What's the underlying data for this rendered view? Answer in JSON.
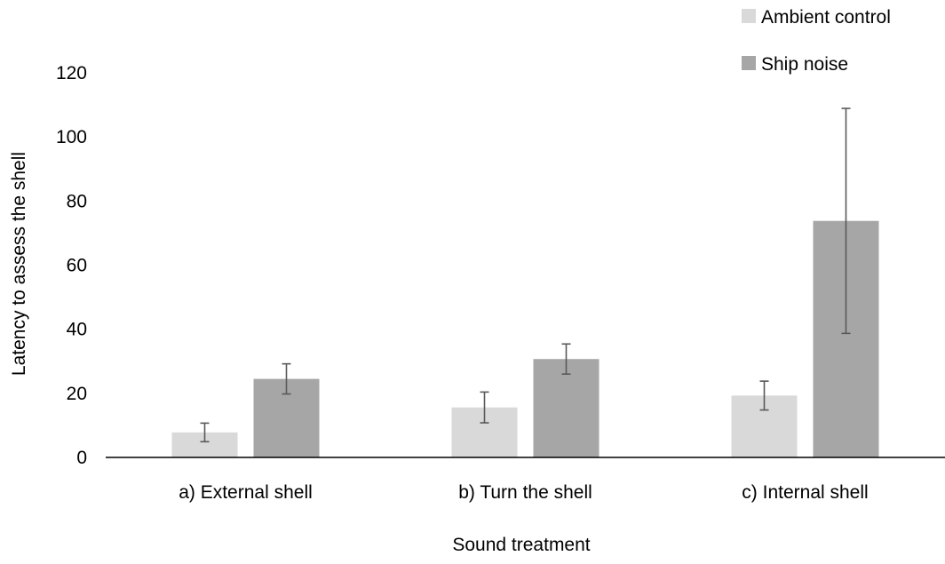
{
  "chart_data": {
    "type": "bar",
    "title": "",
    "xlabel": "Sound treatment",
    "ylabel": "Latency to assess the shell",
    "categories": [
      "a) External shell",
      "b) Turn the shell",
      "c) Internal shell"
    ],
    "series": [
      {
        "name": "Ambient control",
        "color": "#d9d9d9",
        "values": [
          7.8,
          15.6,
          19.3
        ],
        "error": [
          2.9,
          4.8,
          4.5
        ]
      },
      {
        "name": "Ship noise",
        "color": "#a6a6a6",
        "values": [
          24.5,
          30.7,
          73.8
        ],
        "error": [
          4.7,
          4.7,
          35.1
        ]
      }
    ],
    "yticks": [
      0,
      20,
      40,
      60,
      80,
      100,
      120
    ],
    "ylim": [
      0,
      120
    ],
    "grid": false,
    "legend": "top-right"
  }
}
